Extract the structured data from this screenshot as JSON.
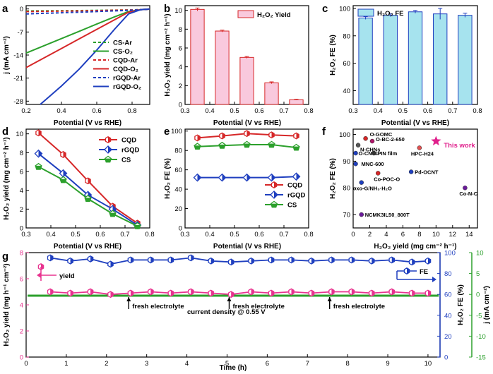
{
  "panels": {
    "a": {
      "letter": "a",
      "xlabel": "Potential (V vs RHE)",
      "ylabel": "j (mA cm⁻²)",
      "legend": [
        "CS-Ar",
        "CS-O₂",
        "CQD-Ar",
        "CQD-O₂",
        "rGQD-Ar",
        "rGQD-O₂"
      ]
    },
    "b": {
      "letter": "b",
      "xlabel": "Potential (V vs RHE)",
      "ylabel": "H₂O₂ yield (mg cm⁻² h⁻¹)",
      "legend": "H₂O₂ Yield"
    },
    "c": {
      "letter": "c",
      "xlabel": "Potential (V vs RHE)",
      "ylabel": "H₂O₂ FE (%)",
      "legend": "H₂O₂ FE"
    },
    "d": {
      "letter": "d",
      "xlabel": "Potential (V vs RHE)",
      "ylabel": "H₂O₂ yield (mg cm⁻² h⁻¹)",
      "legend": [
        "CQD",
        "rGQD",
        "CS"
      ]
    },
    "e": {
      "letter": "e",
      "xlabel": "Potential (V vs RHE)",
      "ylabel": "H₂O₂ FE (%)",
      "legend": [
        "CQD",
        "rGQD",
        "CS"
      ]
    },
    "f": {
      "letter": "f",
      "xlabel": "H₂O₂ yield (mg cm⁻² h⁻¹)",
      "ylabel": "H₂O₂ FE (%)",
      "this_work": "This work"
    },
    "g": {
      "letter": "g",
      "xlabel": "Time (h)",
      "ylabel_left": "H₂O₂ yield (mg h⁻¹ cm⁻²)",
      "ylabel_mid": "H₂O₂ FE (%)",
      "ylabel_right": "j (mA cm⁻²)",
      "legend_yield": "yield",
      "legend_fe": "FE",
      "current_note": "current density @ 0.55 V",
      "fresh": [
        "fresh electrolyte",
        "fresh electrolyte",
        "fresh electrolyte"
      ]
    }
  },
  "colors": {
    "red": "#d62728",
    "blue": "#1f3fbf",
    "green": "#2ca02c",
    "pink": "#e8338f",
    "magenta": "#e0208c",
    "axis_blue": "#1f3fbf",
    "axis_green": "#2ca02c"
  },
  "chart_data": [
    {
      "id": "a",
      "type": "line",
      "xlim": [
        0.2,
        0.9
      ],
      "ylim": [
        -29,
        1
      ],
      "xticks": [
        0.2,
        0.4,
        0.6,
        0.8
      ],
      "yticks": [
        0,
        -7,
        -14,
        -21,
        -28
      ],
      "series": [
        {
          "name": "CS-Ar",
          "style": "dashed",
          "color": "#2ca02c",
          "points": [
            [
              0.2,
              -0.6
            ],
            [
              0.5,
              -0.5
            ],
            [
              0.8,
              -0.3
            ],
            [
              0.9,
              -0.1
            ]
          ]
        },
        {
          "name": "CS-O₂",
          "style": "solid",
          "color": "#2ca02c",
          "points": [
            [
              0.2,
              -13.4
            ],
            [
              0.3,
              -11.2
            ],
            [
              0.4,
              -9.0
            ],
            [
              0.5,
              -6.8
            ],
            [
              0.6,
              -4.6
            ],
            [
              0.7,
              -2.4
            ],
            [
              0.78,
              -0.8
            ],
            [
              0.85,
              -0.2
            ],
            [
              0.9,
              0
            ]
          ]
        },
        {
          "name": "CQD-Ar",
          "style": "dashed",
          "color": "#d62728",
          "points": [
            [
              0.2,
              -0.8
            ],
            [
              0.5,
              -0.6
            ],
            [
              0.8,
              -0.3
            ],
            [
              0.9,
              -0.1
            ]
          ]
        },
        {
          "name": "CQD-O₂",
          "style": "solid",
          "color": "#d62728",
          "points": [
            [
              0.2,
              -17.8
            ],
            [
              0.3,
              -14.9
            ],
            [
              0.4,
              -12.0
            ],
            [
              0.5,
              -9.1
            ],
            [
              0.6,
              -6.2
            ],
            [
              0.7,
              -3.3
            ],
            [
              0.78,
              -1.0
            ],
            [
              0.85,
              -0.2
            ],
            [
              0.9,
              0
            ]
          ]
        },
        {
          "name": "rGQD-Ar",
          "style": "dashed",
          "color": "#1f3fbf",
          "points": [
            [
              0.2,
              -1.5
            ],
            [
              0.5,
              -1.0
            ],
            [
              0.8,
              -0.4
            ],
            [
              0.9,
              -0.1
            ]
          ]
        },
        {
          "name": "rGQD-O₂",
          "style": "solid",
          "color": "#1f3fbf",
          "points": [
            [
              0.28,
              -29
            ],
            [
              0.4,
              -23.4
            ],
            [
              0.5,
              -18.3
            ],
            [
              0.6,
              -12.5
            ],
            [
              0.7,
              -6.2
            ],
            [
              0.78,
              -1.5
            ],
            [
              0.85,
              -0.2
            ],
            [
              0.9,
              0
            ]
          ]
        }
      ]
    },
    {
      "id": "b",
      "type": "bar",
      "xlim": [
        0.3,
        0.8
      ],
      "ylim": [
        0,
        10.5
      ],
      "xticks": [
        0.3,
        0.4,
        0.5,
        0.6,
        0.7,
        0.8
      ],
      "yticks": [
        0,
        2,
        4,
        6,
        8,
        10
      ],
      "x": [
        0.35,
        0.45,
        0.55,
        0.65,
        0.75
      ],
      "values": [
        10.1,
        7.8,
        5.0,
        2.3,
        0.5
      ],
      "errors": [
        0.15,
        0.1,
        0.1,
        0.1,
        0.05
      ]
    },
    {
      "id": "c",
      "type": "bar",
      "xlim": [
        0.3,
        0.8
      ],
      "ylim": [
        30,
        102
      ],
      "xticks": [
        0.3,
        0.4,
        0.5,
        0.6,
        0.7,
        0.8
      ],
      "yticks": [
        40,
        60,
        80,
        100
      ],
      "x": [
        0.35,
        0.45,
        0.55,
        0.65,
        0.75
      ],
      "values": [
        93,
        95,
        97.5,
        96,
        95
      ],
      "errors": [
        1,
        1,
        1,
        4,
        1.5
      ]
    },
    {
      "id": "d",
      "type": "line",
      "xlim": [
        0.3,
        0.8
      ],
      "ylim": [
        0,
        10.5
      ],
      "xticks": [
        0.3,
        0.4,
        0.5,
        0.6,
        0.7,
        0.8
      ],
      "yticks": [
        0,
        2,
        4,
        6,
        8,
        10
      ],
      "series": [
        {
          "name": "CQD",
          "color": "#d62728",
          "x": [
            0.35,
            0.45,
            0.55,
            0.65,
            0.75
          ],
          "values": [
            10.1,
            7.8,
            5.0,
            2.3,
            0.5
          ]
        },
        {
          "name": "rGQD",
          "color": "#1f3fbf",
          "x": [
            0.35,
            0.45,
            0.55,
            0.65,
            0.75
          ],
          "values": [
            7.9,
            5.8,
            3.5,
            2.0,
            0.3
          ]
        },
        {
          "name": "CS",
          "color": "#2ca02c",
          "x": [
            0.35,
            0.45,
            0.55,
            0.65,
            0.75
          ],
          "values": [
            6.5,
            5.1,
            3.1,
            1.5,
            0.2
          ]
        }
      ]
    },
    {
      "id": "e",
      "type": "line",
      "xlim": [
        0.3,
        0.8
      ],
      "ylim": [
        0,
        102
      ],
      "xticks": [
        0.3,
        0.4,
        0.5,
        0.6,
        0.7,
        0.8
      ],
      "yticks": [
        0,
        20,
        40,
        60,
        80,
        100
      ],
      "series": [
        {
          "name": "CQD",
          "color": "#d62728",
          "x": [
            0.35,
            0.45,
            0.55,
            0.65,
            0.75
          ],
          "values": [
            93,
            95,
            97.5,
            96,
            95
          ]
        },
        {
          "name": "rGQD",
          "color": "#1f3fbf",
          "x": [
            0.35,
            0.45,
            0.55,
            0.65,
            0.75
          ],
          "values": [
            52,
            52,
            52,
            52,
            53
          ]
        },
        {
          "name": "CS",
          "color": "#2ca02c",
          "x": [
            0.35,
            0.45,
            0.55,
            0.65,
            0.75
          ],
          "values": [
            84,
            85,
            86,
            86,
            83
          ]
        }
      ]
    },
    {
      "id": "f",
      "type": "scatter",
      "xlim": [
        0,
        15
      ],
      "ylim": [
        65,
        102
      ],
      "xticks": [
        0,
        2,
        4,
        6,
        8,
        10,
        12,
        14
      ],
      "yticks": [
        70,
        80,
        90,
        100
      ],
      "points": [
        {
          "label": "O-GOMC",
          "x": 1.5,
          "y": 98.5,
          "color": "#d62728"
        },
        {
          "label": "O-BC-2-650",
          "x": 2.3,
          "y": 97.5,
          "color": "#b0156a"
        },
        {
          "label": "N-CHNs",
          "x": 0.6,
          "y": 96,
          "color": "#555555"
        },
        {
          "label": "HPC-H24",
          "x": 8,
          "y": 95,
          "color": "#e05050"
        },
        {
          "label": "O-CNTs",
          "x": 0.3,
          "y": 93,
          "color": "#1f3fbf"
        },
        {
          "label": "PIN film",
          "x": 2.5,
          "y": 93,
          "color": "#333333"
        },
        {
          "label": "MNC-600",
          "x": 0.3,
          "y": 89,
          "color": "#1f3fbf"
        },
        {
          "label": "Co-POC-O",
          "x": 3,
          "y": 85.5,
          "color": "#d62728"
        },
        {
          "label": "Pd-OCNT",
          "x": 7,
          "y": 86,
          "color": "#1f3fbf"
        },
        {
          "label": "oxo-G/NH₃·H₂O",
          "x": 1,
          "y": 82,
          "color": "#1f3fbf"
        },
        {
          "label": "Co-N-C",
          "x": 13.5,
          "y": 80,
          "color": "#6a1b9a"
        },
        {
          "label": "NCMK3IL50_800T",
          "x": 1,
          "y": 70,
          "color": "#6a1b9a"
        },
        {
          "label": "This work",
          "x": 10,
          "y": 97.5,
          "color": "#e0208c"
        }
      ]
    },
    {
      "id": "g",
      "type": "line",
      "xlim": [
        0,
        10.3
      ],
      "ylim_left": [
        0,
        8
      ],
      "ylim_fe": [
        0,
        100
      ],
      "ylim_j": [
        -15,
        10
      ],
      "xticks": [
        0,
        1,
        2,
        3,
        4,
        5,
        6,
        7,
        8,
        9,
        10
      ],
      "yticks_left": [
        0,
        2,
        4,
        6,
        8
      ],
      "yticks_fe": [
        0,
        20,
        40,
        60,
        80,
        100
      ],
      "yticks_j": [
        -15,
        -10,
        -5,
        0,
        5,
        10
      ],
      "yield": {
        "x": [
          0.6,
          1.1,
          1.6,
          2.1,
          2.6,
          3.1,
          3.6,
          4.1,
          4.6,
          5.1,
          5.6,
          6.1,
          6.6,
          7.1,
          7.6,
          8.1,
          8.6,
          9.1,
          9.6,
          10.0
        ],
        "values": [
          5.0,
          4.9,
          5.0,
          4.8,
          4.9,
          5.0,
          4.9,
          5.0,
          4.9,
          4.8,
          5.0,
          4.9,
          5.0,
          4.9,
          5.0,
          5.0,
          4.9,
          5.0,
          4.9,
          4.9
        ]
      },
      "fe": {
        "x": [
          0.6,
          1.1,
          1.6,
          2.1,
          2.6,
          3.1,
          3.6,
          4.1,
          4.6,
          5.1,
          5.6,
          6.1,
          6.6,
          7.1,
          7.6,
          8.1,
          8.6,
          9.1,
          9.6,
          10.0
        ],
        "values": [
          95,
          92,
          94,
          89,
          93,
          93,
          93,
          95,
          92,
          91,
          92,
          93,
          93,
          92,
          93,
          93,
          92,
          93,
          91,
          92
        ]
      },
      "current": {
        "j": -0.3
      },
      "fresh_times": [
        2.5,
        5.0,
        7.5
      ]
    }
  ]
}
